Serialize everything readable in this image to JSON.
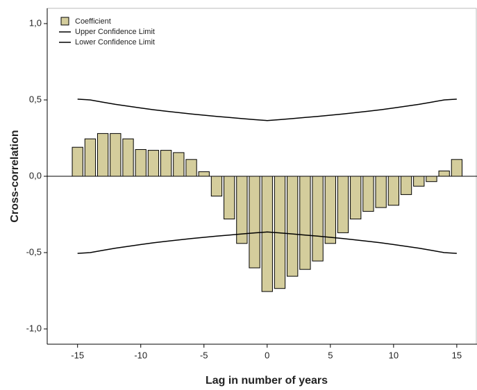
{
  "chart_data": {
    "type": "bar",
    "x_label": "Lag in number of years",
    "y_label": "Cross-correlation",
    "x": [
      -15,
      -14,
      -13,
      -12,
      -11,
      -10,
      -9,
      -8,
      -7,
      -6,
      -5,
      -4,
      -3,
      -2,
      -1,
      0,
      1,
      2,
      3,
      4,
      5,
      6,
      7,
      8,
      9,
      10,
      11,
      12,
      13,
      14,
      15
    ],
    "series": [
      {
        "name": "Coefficient",
        "type": "bar",
        "color": "#d4cd9c",
        "values": [
          0.19,
          0.245,
          0.28,
          0.28,
          0.245,
          0.175,
          0.17,
          0.17,
          0.155,
          0.11,
          0.03,
          -0.13,
          -0.28,
          -0.44,
          -0.6,
          -0.755,
          -0.735,
          -0.655,
          -0.61,
          -0.555,
          -0.44,
          -0.37,
          -0.28,
          -0.23,
          -0.205,
          -0.19,
          -0.12,
          -0.065,
          -0.035,
          0.035,
          0.11
        ]
      },
      {
        "name": "Upper Confidence Limit",
        "type": "line",
        "color": "#000000",
        "values": [
          0.505,
          0.5,
          0.485,
          0.471,
          0.459,
          0.447,
          0.436,
          0.426,
          0.417,
          0.408,
          0.4,
          0.392,
          0.385,
          0.378,
          0.371,
          0.365,
          0.371,
          0.378,
          0.385,
          0.392,
          0.4,
          0.408,
          0.417,
          0.426,
          0.436,
          0.447,
          0.459,
          0.471,
          0.485,
          0.5,
          0.505
        ]
      },
      {
        "name": "Lower Confidence Limit",
        "type": "line",
        "color": "#000000",
        "values": [
          -0.505,
          -0.5,
          -0.485,
          -0.471,
          -0.459,
          -0.447,
          -0.436,
          -0.426,
          -0.417,
          -0.408,
          -0.4,
          -0.392,
          -0.385,
          -0.378,
          -0.371,
          -0.365,
          -0.371,
          -0.378,
          -0.385,
          -0.392,
          -0.4,
          -0.408,
          -0.417,
          -0.426,
          -0.436,
          -0.447,
          -0.459,
          -0.471,
          -0.485,
          -0.5,
          -0.505
        ]
      }
    ],
    "xlim": [
      -17.4,
      16.6
    ],
    "ylim": [
      -1.1,
      1.1
    ],
    "xticks": [
      -15,
      -10,
      -5,
      0,
      5,
      10,
      15
    ],
    "yticks": [
      {
        "value": -1,
        "label": "-1,0"
      },
      {
        "value": -0.5,
        "label": "-0,5"
      },
      {
        "value": 0,
        "label": "0,0"
      },
      {
        "value": 0.5,
        "label": "0,5"
      },
      {
        "value": 1,
        "label": "1,0"
      }
    ],
    "legend": "top-left"
  }
}
